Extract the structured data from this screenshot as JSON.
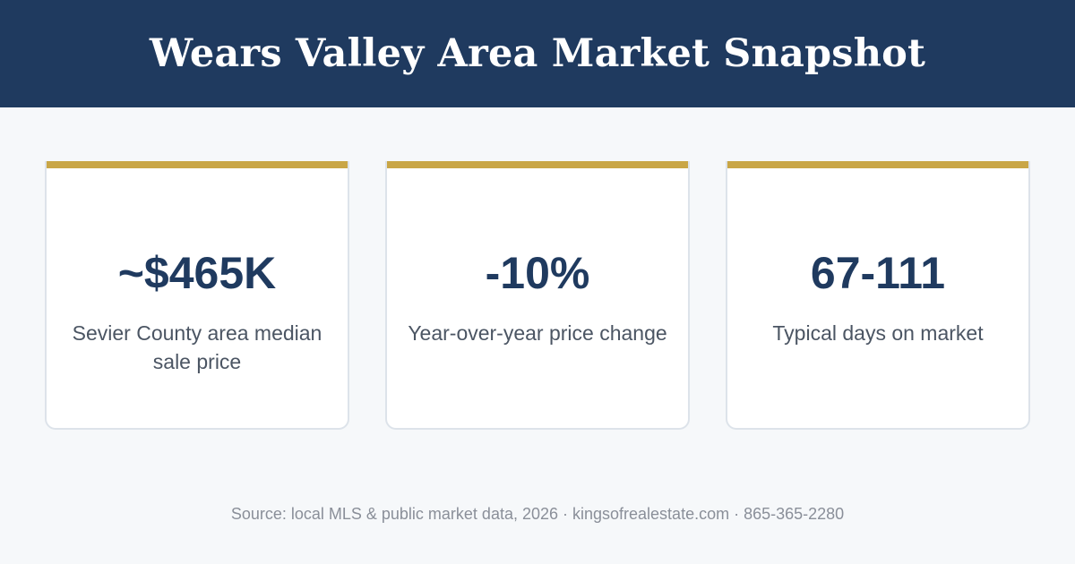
{
  "header": {
    "title": "Wears Valley Area Market Snapshot"
  },
  "stats": [
    {
      "value": "~$465K",
      "label": "Sevier County area median sale price"
    },
    {
      "value": "-10%",
      "label": "Year-over-year price change"
    },
    {
      "value": "67-111",
      "label": "Typical days on market"
    }
  ],
  "footer": {
    "source": "Source: local MLS & public market data, 2026 · kingsofrealestate.com · 865-365-2280"
  },
  "colors": {
    "header_bg": "#1f3a5f",
    "accent": "#c9a646",
    "value_text": "#1f3a5f",
    "background": "#f6f8fa"
  }
}
